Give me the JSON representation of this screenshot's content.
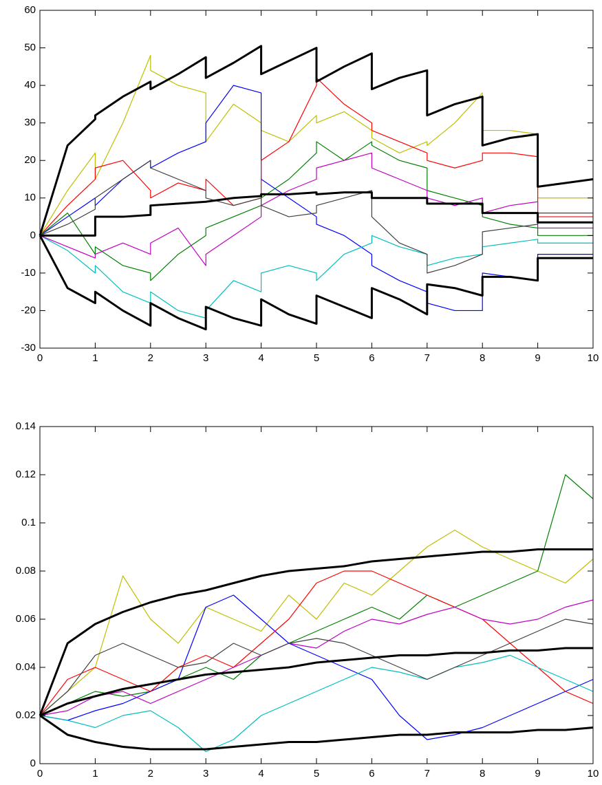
{
  "chart_data": [
    {
      "type": "line",
      "x": [
        0,
        0.5,
        1,
        1,
        1.5,
        2,
        2,
        2.5,
        3,
        3,
        3.5,
        4,
        4,
        4.5,
        5,
        5,
        5.5,
        6,
        6,
        6.5,
        7,
        7,
        7.5,
        8,
        8,
        8.5,
        9,
        9,
        9.5,
        10
      ],
      "xlim": [
        0,
        10
      ],
      "xticks": [
        0,
        1,
        2,
        3,
        4,
        5,
        6,
        7,
        8,
        9,
        10
      ],
      "ylim": [
        -30,
        60
      ],
      "yticks": [
        -30,
        -20,
        -10,
        0,
        10,
        20,
        30,
        40,
        50,
        60
      ],
      "series": [
        {
          "color": "#bfbf00",
          "values": [
            0,
            12,
            22,
            15,
            30,
            48,
            44,
            40,
            38,
            25,
            35,
            30,
            28,
            25,
            32,
            30,
            33,
            28,
            26,
            22,
            25,
            24,
            30,
            38,
            28,
            28,
            27,
            10,
            10,
            10
          ]
        },
        {
          "color": "#0000ff",
          "values": [
            0,
            5,
            10,
            8,
            15,
            20,
            18,
            22,
            25,
            30,
            40,
            38,
            15,
            10,
            5,
            3,
            0,
            -5,
            -8,
            -12,
            -15,
            -18,
            -20,
            -20,
            -10,
            -11,
            -12,
            -5,
            -5,
            -5
          ]
        },
        {
          "color": "#ff0000",
          "values": [
            0,
            8,
            15,
            18,
            20,
            12,
            10,
            14,
            12,
            15,
            8,
            10,
            20,
            25,
            40,
            42,
            35,
            30,
            28,
            25,
            22,
            20,
            18,
            20,
            22,
            22,
            21,
            5,
            5,
            5
          ]
        },
        {
          "color": "#008000",
          "values": [
            0,
            6,
            -5,
            -3,
            -8,
            -10,
            -12,
            -5,
            0,
            2,
            5,
            8,
            10,
            15,
            22,
            25,
            20,
            25,
            24,
            20,
            18,
            12,
            10,
            8,
            5,
            3,
            2,
            0,
            0,
            0
          ]
        },
        {
          "color": "#00bfbf",
          "values": [
            0,
            -4,
            -10,
            -8,
            -15,
            -18,
            -15,
            -20,
            -22,
            -20,
            -12,
            -15,
            -10,
            -8,
            -10,
            -12,
            -5,
            -2,
            0,
            -3,
            -5,
            -8,
            -6,
            -5,
            -3,
            -2,
            -1,
            -2,
            -2,
            -2
          ]
        },
        {
          "color": "#bf00bf",
          "values": [
            0,
            -3,
            -6,
            -5,
            -2,
            -5,
            -2,
            2,
            -8,
            -5,
            0,
            5,
            8,
            12,
            15,
            18,
            20,
            22,
            18,
            15,
            12,
            10,
            8,
            10,
            6,
            8,
            9,
            2,
            2,
            2
          ]
        },
        {
          "color": "#404040",
          "values": [
            0,
            3,
            7,
            10,
            15,
            20,
            18,
            15,
            12,
            10,
            8,
            10,
            8,
            5,
            6,
            8,
            10,
            12,
            5,
            -2,
            -5,
            -10,
            -8,
            -5,
            1,
            2,
            3,
            6,
            6,
            6
          ]
        },
        {
          "color": "#000000",
          "values": [
            0,
            24,
            31,
            32,
            37,
            41,
            39,
            43,
            47.5,
            42,
            46,
            50.5,
            43,
            46.5,
            50,
            41,
            45,
            48.5,
            39,
            42,
            44,
            32,
            35,
            37,
            24,
            26,
            27,
            13,
            14,
            15
          ]
        },
        {
          "color": "#000000",
          "values": [
            0,
            0,
            0,
            5,
            5,
            5.5,
            8,
            8.5,
            9,
            9,
            10,
            10.5,
            11,
            11,
            11.5,
            11,
            11.5,
            11.5,
            10,
            10,
            10,
            8.5,
            8.5,
            8.5,
            6,
            6,
            6,
            3.5,
            3.5,
            3.5
          ]
        },
        {
          "color": "#000000",
          "values": [
            0,
            -14,
            -18,
            -15,
            -20,
            -24,
            -18,
            -22,
            -25,
            -19,
            -22,
            -24,
            -17,
            -21,
            -23.5,
            -16,
            -19,
            -22,
            -14,
            -17,
            -21,
            -13,
            -14,
            -16,
            -11,
            -11,
            -12,
            -6,
            -6,
            -6
          ]
        }
      ]
    },
    {
      "type": "line",
      "x": [
        0,
        0.5,
        1,
        1.5,
        2,
        2.5,
        3,
        3.5,
        4,
        4.5,
        5,
        5.5,
        6,
        6.5,
        7,
        7.5,
        8,
        8.5,
        9,
        9.5,
        10
      ],
      "xlim": [
        0,
        10
      ],
      "xticks": [
        0,
        1,
        2,
        3,
        4,
        5,
        6,
        7,
        8,
        9,
        10
      ],
      "ylim": [
        0,
        0.14
      ],
      "yticks": [
        0,
        0.02,
        0.04,
        0.06,
        0.08,
        0.1,
        0.12,
        0.14
      ],
      "series": [
        {
          "color": "#bfbf00",
          "values": [
            0.02,
            0.03,
            0.04,
            0.078,
            0.06,
            0.05,
            0.065,
            0.06,
            0.055,
            0.07,
            0.06,
            0.075,
            0.07,
            0.08,
            0.09,
            0.097,
            0.09,
            0.085,
            0.08,
            0.075,
            0.085
          ]
        },
        {
          "color": "#008000",
          "values": [
            0.02,
            0.025,
            0.03,
            0.028,
            0.03,
            0.035,
            0.04,
            0.035,
            0.045,
            0.05,
            0.055,
            0.06,
            0.065,
            0.06,
            0.07,
            0.065,
            0.07,
            0.075,
            0.08,
            0.12,
            0.11
          ]
        },
        {
          "color": "#0000ff",
          "values": [
            0.02,
            0.018,
            0.022,
            0.025,
            0.03,
            0.035,
            0.065,
            0.07,
            0.06,
            0.05,
            0.045,
            0.04,
            0.035,
            0.02,
            0.01,
            0.012,
            0.015,
            0.02,
            0.025,
            0.03,
            0.035
          ]
        },
        {
          "color": "#ff0000",
          "values": [
            0.02,
            0.035,
            0.04,
            0.035,
            0.03,
            0.04,
            0.045,
            0.04,
            0.05,
            0.06,
            0.075,
            0.08,
            0.08,
            0.075,
            0.07,
            0.065,
            0.06,
            0.05,
            0.04,
            0.03,
            0.025
          ]
        },
        {
          "color": "#00bfbf",
          "values": [
            0.02,
            0.018,
            0.015,
            0.02,
            0.022,
            0.015,
            0.005,
            0.01,
            0.02,
            0.025,
            0.03,
            0.035,
            0.04,
            0.038,
            0.035,
            0.04,
            0.042,
            0.045,
            0.04,
            0.035,
            0.03
          ]
        },
        {
          "color": "#bf00bf",
          "values": [
            0.02,
            0.022,
            0.028,
            0.03,
            0.025,
            0.03,
            0.035,
            0.04,
            0.045,
            0.05,
            0.048,
            0.055,
            0.06,
            0.058,
            0.062,
            0.065,
            0.06,
            0.058,
            0.06,
            0.065,
            0.068
          ]
        },
        {
          "color": "#404040",
          "values": [
            0.02,
            0.03,
            0.045,
            0.05,
            0.045,
            0.04,
            0.042,
            0.05,
            0.045,
            0.05,
            0.052,
            0.05,
            0.045,
            0.04,
            0.035,
            0.04,
            0.045,
            0.05,
            0.055,
            0.06,
            0.058
          ]
        },
        {
          "color": "#000000",
          "values": [
            0.02,
            0.05,
            0.058,
            0.063,
            0.067,
            0.07,
            0.072,
            0.075,
            0.078,
            0.08,
            0.081,
            0.082,
            0.084,
            0.085,
            0.086,
            0.087,
            0.088,
            0.088,
            0.089,
            0.089,
            0.089
          ]
        },
        {
          "color": "#000000",
          "values": [
            0.02,
            0.025,
            0.028,
            0.031,
            0.033,
            0.035,
            0.037,
            0.038,
            0.039,
            0.04,
            0.042,
            0.043,
            0.044,
            0.045,
            0.045,
            0.046,
            0.046,
            0.047,
            0.047,
            0.048,
            0.048
          ]
        },
        {
          "color": "#000000",
          "values": [
            0.02,
            0.012,
            0.009,
            0.007,
            0.006,
            0.006,
            0.006,
            0.007,
            0.008,
            0.009,
            0.009,
            0.01,
            0.011,
            0.012,
            0.012,
            0.013,
            0.013,
            0.013,
            0.014,
            0.014,
            0.015
          ]
        }
      ]
    }
  ]
}
